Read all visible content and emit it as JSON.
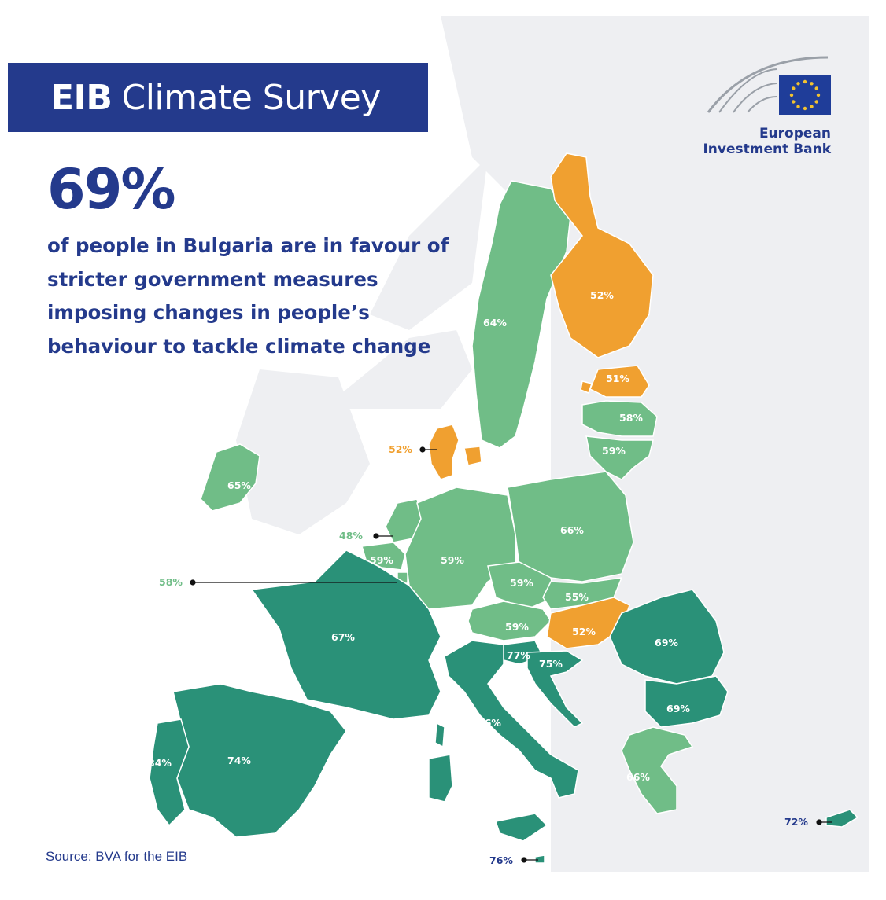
{
  "header": {
    "title_bold": "EIB",
    "title_rest": "Climate Survey",
    "headline_value": "69%",
    "description": "of people in Bulgaria are in favour of stricter government measures imposing changes in people’s behaviour to tackle climate change",
    "source": "Source: BVA for the EIB"
  },
  "logo": {
    "line1": "European",
    "line2": "Investment Bank",
    "icon": "eu-flag-icon",
    "flag_color": "#1f3d99",
    "star_color": "#f2c230"
  },
  "legend_colors": {
    "high": "#2a9178",
    "medium": "#70bd87",
    "low": "#f0a030",
    "land": "#eeeff2",
    "sea": "#ffffff"
  },
  "countries": [
    {
      "id": "sweden",
      "value": "64%",
      "category": "medium"
    },
    {
      "id": "finland",
      "value": "52%",
      "category": "low"
    },
    {
      "id": "estonia",
      "value": "51%",
      "category": "low"
    },
    {
      "id": "latvia",
      "value": "58%",
      "category": "medium"
    },
    {
      "id": "lithuania",
      "value": "59%",
      "category": "medium"
    },
    {
      "id": "denmark",
      "value": "52%",
      "category": "low"
    },
    {
      "id": "ireland",
      "value": "65%",
      "category": "medium"
    },
    {
      "id": "netherlands",
      "value": "48%",
      "category": "medium"
    },
    {
      "id": "belgium",
      "value": "59%",
      "category": "medium"
    },
    {
      "id": "luxembourg",
      "value": "58%",
      "category": "medium"
    },
    {
      "id": "germany",
      "value": "59%",
      "category": "medium"
    },
    {
      "id": "poland",
      "value": "66%",
      "category": "medium"
    },
    {
      "id": "czechia",
      "value": "59%",
      "category": "medium"
    },
    {
      "id": "slovakia",
      "value": "55%",
      "category": "medium"
    },
    {
      "id": "austria",
      "value": "59%",
      "category": "medium"
    },
    {
      "id": "hungary",
      "value": "52%",
      "category": "low"
    },
    {
      "id": "france",
      "value": "67%",
      "category": "high"
    },
    {
      "id": "slovenia",
      "value": "77%",
      "category": "high"
    },
    {
      "id": "croatia",
      "value": "75%",
      "category": "high"
    },
    {
      "id": "romania",
      "value": "69%",
      "category": "high"
    },
    {
      "id": "bulgaria",
      "value": "69%",
      "category": "high"
    },
    {
      "id": "italy",
      "value": "76%",
      "category": "high"
    },
    {
      "id": "spain",
      "value": "74%",
      "category": "high"
    },
    {
      "id": "portugal",
      "value": "84%",
      "category": "high"
    },
    {
      "id": "greece",
      "value": "66%",
      "category": "medium"
    },
    {
      "id": "cyprus",
      "value": "72%",
      "category": "high"
    },
    {
      "id": "malta",
      "value": "76%",
      "category": "high"
    }
  ]
}
